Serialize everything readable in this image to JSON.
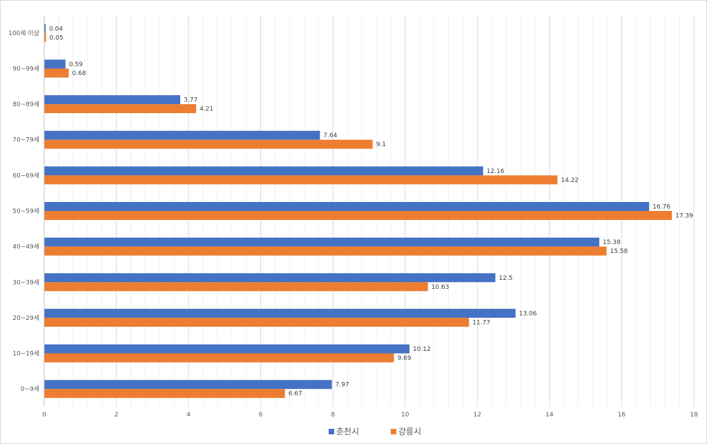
{
  "chart_data": {
    "type": "bar",
    "orientation": "horizontal",
    "title": "",
    "xlabel": "",
    "ylabel": "",
    "xlim": [
      0,
      18
    ],
    "x_ticks": [
      0,
      2,
      4,
      6,
      8,
      10,
      12,
      14,
      16,
      18
    ],
    "x_tick_labels": [
      "0",
      "2",
      "4",
      "6",
      "8",
      "10",
      "12",
      "14",
      "16",
      "18"
    ],
    "grid": "vertical major and minor gridlines",
    "legend_position": "bottom",
    "categories": [
      "0~9세",
      "10~19세",
      "20~29세",
      "30~39세",
      "40~49세",
      "50~59세",
      "60~69세",
      "70~79세",
      "80~89세",
      "90~99세",
      "100세 이상"
    ],
    "series": [
      {
        "name": "춘천시",
        "color": "#4472c4",
        "values": [
          7.97,
          10.12,
          13.06,
          12.5,
          15.38,
          16.76,
          12.16,
          7.64,
          3.77,
          0.59,
          0.04
        ],
        "value_labels": [
          "7.97",
          "10.12",
          "13.06",
          "12.5",
          "15.38",
          "16.76",
          "12.16",
          "7.64",
          "3.77",
          "0.59",
          "0.04"
        ]
      },
      {
        "name": "강릉시",
        "color": "#ed7d31",
        "values": [
          6.67,
          9.69,
          11.77,
          10.63,
          15.58,
          17.39,
          14.22,
          9.1,
          4.21,
          0.68,
          0.05
        ],
        "value_labels": [
          "6.67",
          "9.69",
          "11.77",
          "10.63",
          "15.58",
          "17.39",
          "14.22",
          "9.1",
          "4.21",
          "0.68",
          "0.05"
        ]
      }
    ]
  }
}
